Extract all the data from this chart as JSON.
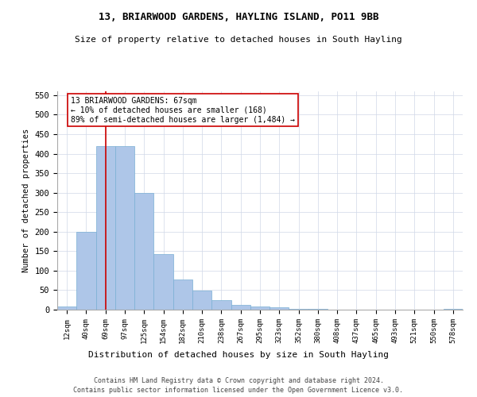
{
  "title": "13, BRIARWOOD GARDENS, HAYLING ISLAND, PO11 9BB",
  "subtitle": "Size of property relative to detached houses in South Hayling",
  "xlabel": "Distribution of detached houses by size in South Hayling",
  "ylabel": "Number of detached properties",
  "categories": [
    "12sqm",
    "40sqm",
    "69sqm",
    "97sqm",
    "125sqm",
    "154sqm",
    "182sqm",
    "210sqm",
    "238sqm",
    "267sqm",
    "295sqm",
    "323sqm",
    "352sqm",
    "380sqm",
    "408sqm",
    "437sqm",
    "465sqm",
    "493sqm",
    "521sqm",
    "550sqm",
    "578sqm"
  ],
  "values": [
    8,
    200,
    420,
    420,
    300,
    143,
    77,
    49,
    24,
    12,
    8,
    7,
    2,
    2,
    1,
    0,
    0,
    0,
    0,
    0,
    3
  ],
  "bar_color": "#aec6e8",
  "bar_edge_color": "#7aafd4",
  "property_line_x": 2,
  "annotation_title": "13 BRIARWOOD GARDENS: 67sqm",
  "annotation_line1": "← 10% of detached houses are smaller (168)",
  "annotation_line2": "89% of semi-detached houses are larger (1,484) →",
  "annotation_box_color": "#ffffff",
  "annotation_box_edge_color": "#cc0000",
  "red_line_color": "#cc0000",
  "ylim": [
    0,
    560
  ],
  "yticks": [
    0,
    50,
    100,
    150,
    200,
    250,
    300,
    350,
    400,
    450,
    500,
    550
  ],
  "footer1": "Contains HM Land Registry data © Crown copyright and database right 2024.",
  "footer2": "Contains public sector information licensed under the Open Government Licence v3.0.",
  "background_color": "#ffffff",
  "grid_color": "#d0d8e8"
}
